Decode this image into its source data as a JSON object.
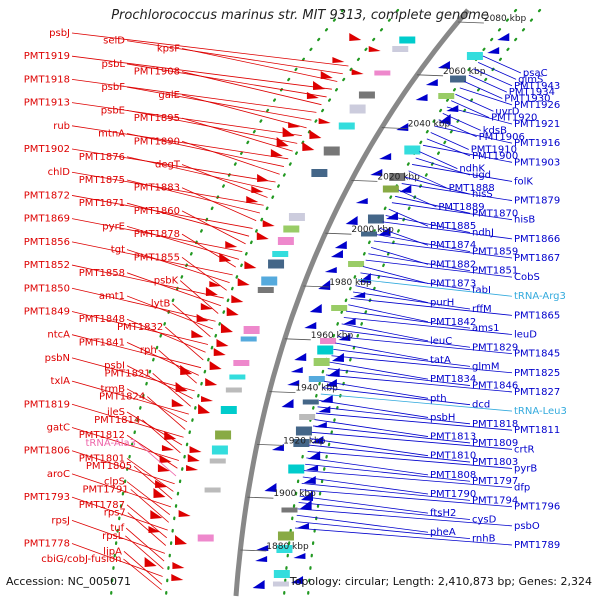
{
  "title": "Prochlorococcus marinus str. MIT 9313, complete genome",
  "footer": {
    "accession": "Accession: NC_005071",
    "summary": "Topology: circular; Length: 2,410,873 bp; Genes: 2,324"
  },
  "colors": {
    "forward": "#dd0000",
    "reverse": "#0000cc",
    "rna": "#ee66aa",
    "rna_blue": "#33aadd",
    "backbone": "#888888",
    "dots": "#229922"
  },
  "scale_marks": [
    {
      "label": "2080 kbp"
    },
    {
      "label": "2060 kbp"
    },
    {
      "label": "2040 kbp"
    },
    {
      "label": "2020 kbp"
    },
    {
      "label": "2000 kbp"
    },
    {
      "label": "1980 kbp"
    },
    {
      "label": "1960 kbp"
    },
    {
      "label": "1940 kbp"
    },
    {
      "label": "1920 kbp"
    },
    {
      "label": "1900 kbp"
    },
    {
      "label": "1880 kbp"
    }
  ],
  "left_labels": [
    {
      "text": "psbJ",
      "kind": "forward"
    },
    {
      "text": "selD",
      "kind": "forward"
    },
    {
      "text": "kpsF",
      "kind": "forward"
    },
    {
      "text": "PMT1919",
      "kind": "forward"
    },
    {
      "text": "psbL",
      "kind": "forward"
    },
    {
      "text": "PMT1908",
      "kind": "forward"
    },
    {
      "text": "PMT1918",
      "kind": "forward"
    },
    {
      "text": "psbF",
      "kind": "forward"
    },
    {
      "text": "galE",
      "kind": "forward"
    },
    {
      "text": "PMT1913",
      "kind": "forward"
    },
    {
      "text": "psbE",
      "kind": "forward"
    },
    {
      "text": "PMT1895",
      "kind": "forward"
    },
    {
      "text": "rub",
      "kind": "forward"
    },
    {
      "text": "mtnA",
      "kind": "forward"
    },
    {
      "text": "PMT1890",
      "kind": "forward"
    },
    {
      "text": "PMT1902",
      "kind": "forward"
    },
    {
      "text": "PMT1876",
      "kind": "forward"
    },
    {
      "text": "degT",
      "kind": "forward"
    },
    {
      "text": "chlD",
      "kind": "forward"
    },
    {
      "text": "PMT1875",
      "kind": "forward"
    },
    {
      "text": "PMT1883",
      "kind": "forward"
    },
    {
      "text": "PMT1872",
      "kind": "forward"
    },
    {
      "text": "PMT1871",
      "kind": "forward"
    },
    {
      "text": "PMT1860",
      "kind": "forward"
    },
    {
      "text": "PMT1869",
      "kind": "forward"
    },
    {
      "text": "pyrE",
      "kind": "forward"
    },
    {
      "text": "PMT1878",
      "kind": "forward"
    },
    {
      "text": "PMT1856",
      "kind": "forward"
    },
    {
      "text": "tgt",
      "kind": "forward"
    },
    {
      "text": "PMT1855",
      "kind": "forward"
    },
    {
      "text": "PMT1852",
      "kind": "forward"
    },
    {
      "text": "PMT1858",
      "kind": "forward"
    },
    {
      "text": "psbK",
      "kind": "forward"
    },
    {
      "text": "PMT1850",
      "kind": "forward"
    },
    {
      "text": "amt1",
      "kind": "forward"
    },
    {
      "text": "lytB",
      "kind": "forward"
    },
    {
      "text": "PMT1849",
      "kind": "forward"
    },
    {
      "text": "PMT1848",
      "kind": "forward"
    },
    {
      "text": "PMT1832",
      "kind": "forward"
    },
    {
      "text": "ntcA",
      "kind": "forward"
    },
    {
      "text": "PMT1841",
      "kind": "forward"
    },
    {
      "text": "rph",
      "kind": "forward"
    },
    {
      "text": "psbN",
      "kind": "forward"
    },
    {
      "text": "psbI",
      "kind": "forward"
    },
    {
      "text": "PMT1821",
      "kind": "forward"
    },
    {
      "text": "txlA",
      "kind": "forward"
    },
    {
      "text": "trmB",
      "kind": "forward"
    },
    {
      "text": "PMT1824",
      "kind": "forward"
    },
    {
      "text": "PMT1819",
      "kind": "forward"
    },
    {
      "text": "ileS",
      "kind": "forward"
    },
    {
      "text": "PMT1814",
      "kind": "forward"
    },
    {
      "text": "gatC",
      "kind": "forward"
    },
    {
      "text": "PMT1812",
      "kind": "forward"
    },
    {
      "text": "tRNA-Ala3",
      "kind": "rna"
    },
    {
      "text": "PMT1806",
      "kind": "forward"
    },
    {
      "text": "PMT1801",
      "kind": "forward"
    },
    {
      "text": "PMT1805",
      "kind": "forward"
    },
    {
      "text": "aroC",
      "kind": "forward"
    },
    {
      "text": "clpS",
      "kind": "forward"
    },
    {
      "text": "PMT1791",
      "kind": "forward"
    },
    {
      "text": "PMT1793",
      "kind": "forward"
    },
    {
      "text": "PMT1787",
      "kind": "forward"
    },
    {
      "text": "rps7",
      "kind": "forward"
    },
    {
      "text": "rpsJ",
      "kind": "forward"
    },
    {
      "text": "tuf",
      "kind": "forward"
    },
    {
      "text": "rpsL",
      "kind": "forward"
    },
    {
      "text": "PMT1778",
      "kind": "forward"
    },
    {
      "text": "lipA",
      "kind": "forward"
    },
    {
      "text": "cbiG/cobJ-fusion",
      "kind": "forward"
    }
  ],
  "right_labels": [
    {
      "text": "psaC",
      "kind": "reverse"
    },
    {
      "text": "glmS",
      "kind": "reverse"
    },
    {
      "text": "PMT1943",
      "kind": "reverse"
    },
    {
      "text": "PMT1934",
      "kind": "reverse"
    },
    {
      "text": "PMT1930",
      "kind": "reverse"
    },
    {
      "text": "PMT1926",
      "kind": "reverse"
    },
    {
      "text": "uvrD",
      "kind": "reverse"
    },
    {
      "text": "PMT1920",
      "kind": "reverse"
    },
    {
      "text": "PMT1921",
      "kind": "reverse"
    },
    {
      "text": "kdsB",
      "kind": "reverse"
    },
    {
      "text": "PMT1906",
      "kind": "reverse"
    },
    {
      "text": "PMT1916",
      "kind": "reverse"
    },
    {
      "text": "PMT1910",
      "kind": "reverse"
    },
    {
      "text": "PMT1900",
      "kind": "reverse"
    },
    {
      "text": "PMT1903",
      "kind": "reverse"
    },
    {
      "text": "ndhK",
      "kind": "reverse"
    },
    {
      "text": "ugd",
      "kind": "reverse"
    },
    {
      "text": "folK",
      "kind": "reverse"
    },
    {
      "text": "PMT1888",
      "kind": "reverse"
    },
    {
      "text": "hisS",
      "kind": "reverse"
    },
    {
      "text": "PMT1879",
      "kind": "reverse"
    },
    {
      "text": "PMT1889",
      "kind": "reverse"
    },
    {
      "text": "PMT1870",
      "kind": "reverse"
    },
    {
      "text": "hisB",
      "kind": "reverse"
    },
    {
      "text": "PMT1885",
      "kind": "reverse"
    },
    {
      "text": "ndhJ",
      "kind": "reverse"
    },
    {
      "text": "PMT1866",
      "kind": "reverse"
    },
    {
      "text": "PMT1874",
      "kind": "reverse"
    },
    {
      "text": "PMT1859",
      "kind": "reverse"
    },
    {
      "text": "PMT1867",
      "kind": "reverse"
    },
    {
      "text": "PMT1882",
      "kind": "reverse"
    },
    {
      "text": "PMT1851",
      "kind": "reverse"
    },
    {
      "text": "CobS",
      "kind": "reverse"
    },
    {
      "text": "PMT1873",
      "kind": "reverse"
    },
    {
      "text": "fabI",
      "kind": "reverse"
    },
    {
      "text": "tRNA-Arg3",
      "kind": "rna_blue"
    },
    {
      "text": "purH",
      "kind": "reverse"
    },
    {
      "text": "rffM",
      "kind": "reverse"
    },
    {
      "text": "PMT1865",
      "kind": "reverse"
    },
    {
      "text": "PMT1842",
      "kind": "reverse"
    },
    {
      "text": "ams1",
      "kind": "reverse"
    },
    {
      "text": "leuD",
      "kind": "reverse"
    },
    {
      "text": "leuC",
      "kind": "reverse"
    },
    {
      "text": "PMT1829",
      "kind": "reverse"
    },
    {
      "text": "PMT1845",
      "kind": "reverse"
    },
    {
      "text": "tatA",
      "kind": "reverse"
    },
    {
      "text": "glmM",
      "kind": "reverse"
    },
    {
      "text": "PMT1825",
      "kind": "reverse"
    },
    {
      "text": "PMT1834",
      "kind": "reverse"
    },
    {
      "text": "PMT1846",
      "kind": "reverse"
    },
    {
      "text": "PMT1827",
      "kind": "reverse"
    },
    {
      "text": "pth",
      "kind": "reverse"
    },
    {
      "text": "dcd",
      "kind": "reverse"
    },
    {
      "text": "tRNA-Leu3",
      "kind": "rna_blue"
    },
    {
      "text": "psbH",
      "kind": "reverse"
    },
    {
      "text": "PMT1818",
      "kind": "reverse"
    },
    {
      "text": "PMT1811",
      "kind": "reverse"
    },
    {
      "text": "PMT1813",
      "kind": "reverse"
    },
    {
      "text": "PMT1809",
      "kind": "reverse"
    },
    {
      "text": "crtR",
      "kind": "reverse"
    },
    {
      "text": "PMT1810",
      "kind": "reverse"
    },
    {
      "text": "PMT1803",
      "kind": "reverse"
    },
    {
      "text": "pyrB",
      "kind": "reverse"
    },
    {
      "text": "PMT1808",
      "kind": "reverse"
    },
    {
      "text": "PMT1797",
      "kind": "reverse"
    },
    {
      "text": "dfp",
      "kind": "reverse"
    },
    {
      "text": "PMT1790",
      "kind": "reverse"
    },
    {
      "text": "PMT1794",
      "kind": "reverse"
    },
    {
      "text": "PMT1796",
      "kind": "reverse"
    },
    {
      "text": "ftsH2",
      "kind": "reverse"
    },
    {
      "text": "cysD",
      "kind": "reverse"
    },
    {
      "text": "psbO",
      "kind": "reverse"
    },
    {
      "text": "pheA",
      "kind": "reverse"
    },
    {
      "text": "rnhB",
      "kind": "reverse"
    },
    {
      "text": "PMT1789",
      "kind": "reverse"
    }
  ]
}
